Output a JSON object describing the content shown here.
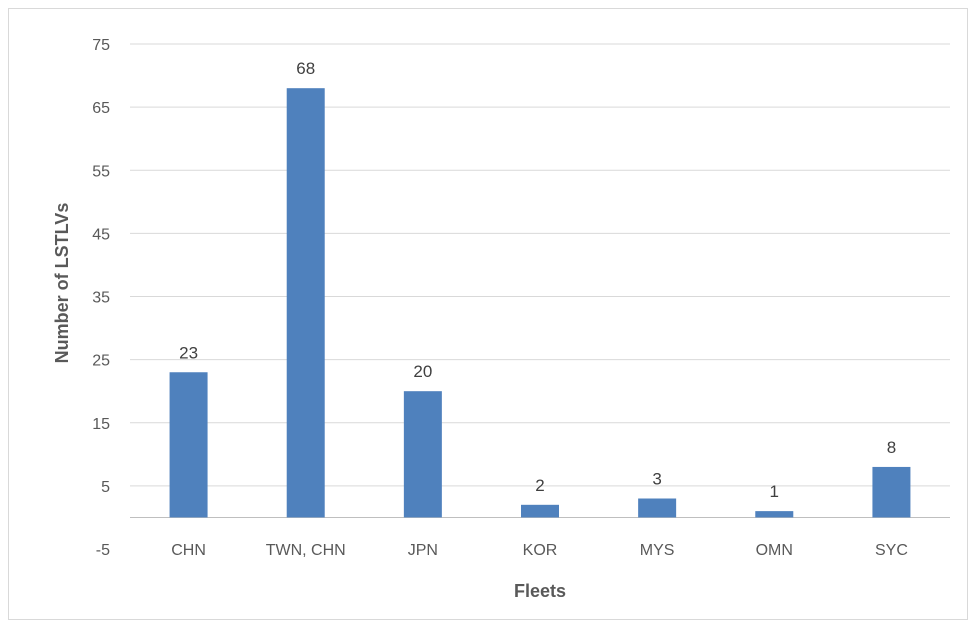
{
  "chart_data": {
    "type": "bar",
    "categories": [
      "CHN",
      "TWN, CHN",
      "JPN",
      "KOR",
      "MYS",
      "OMN",
      "SYC"
    ],
    "values": [
      23,
      68,
      20,
      2,
      3,
      1,
      8
    ],
    "data_labels": [
      "23",
      "68",
      "20",
      "2",
      "3",
      "1",
      "8"
    ],
    "xlabel": "Fleets",
    "ylabel": "Number of LSTLVs",
    "ylim": [
      -5,
      75
    ],
    "yticks": [
      -5,
      5,
      15,
      25,
      35,
      45,
      55,
      65,
      75
    ],
    "grid": true,
    "legend": "none",
    "colors": {
      "bar": "#4f81bd",
      "grid": "#d9d9d9",
      "tick_text": "#595959",
      "label_text": "#404040"
    }
  }
}
